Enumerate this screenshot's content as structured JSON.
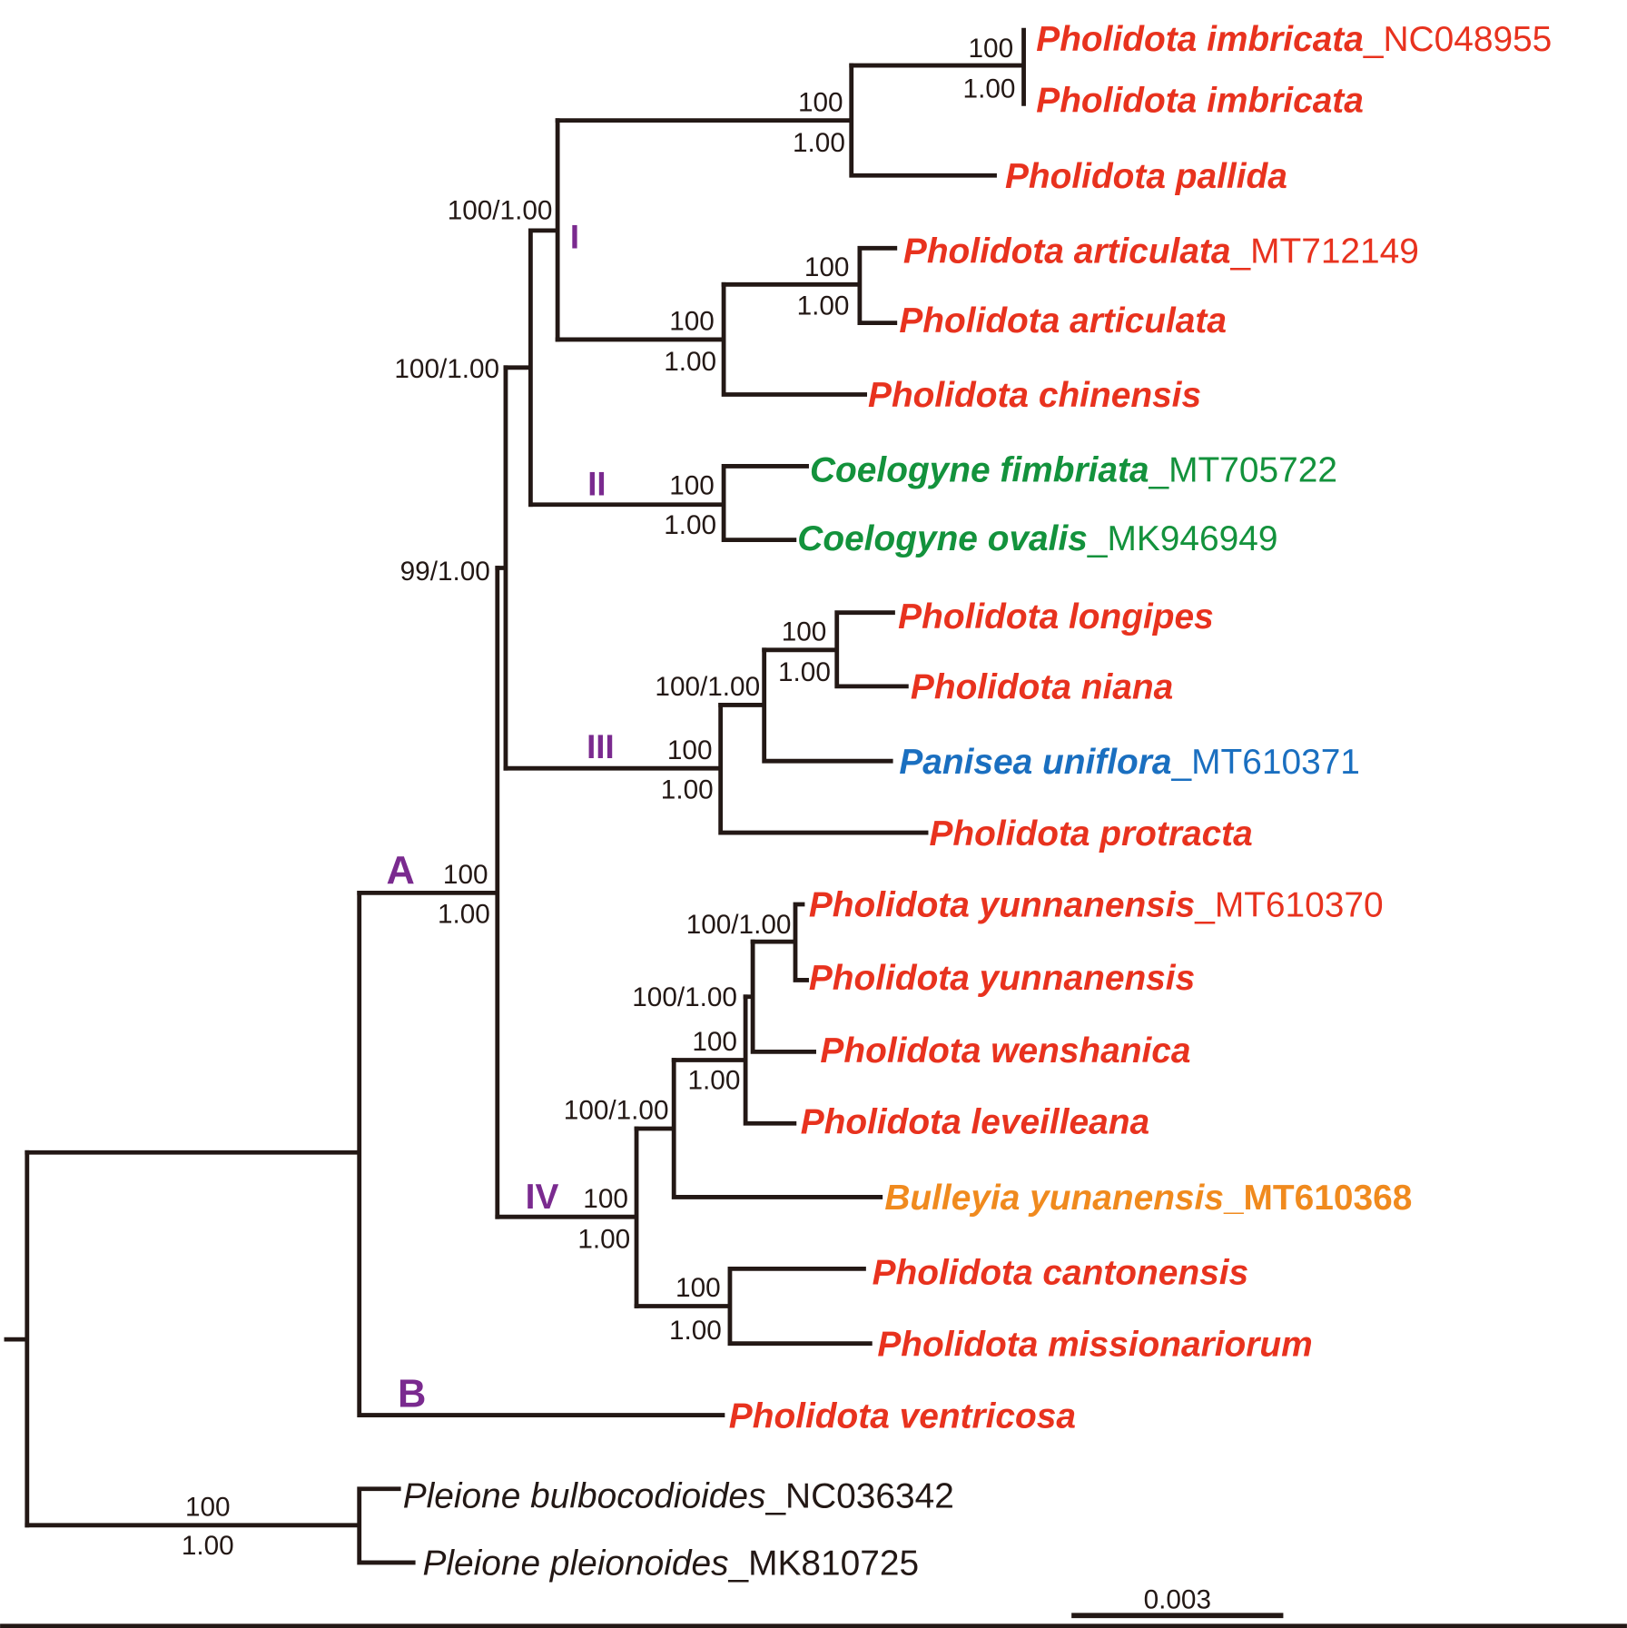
{
  "colors": {
    "pholidota": "#e8321e",
    "coelogyne": "#13923c",
    "panisea": "#1a6fc0",
    "bulleyia": "#f08a1e",
    "clade_label": "#7a2a8f",
    "branch": "#231815"
  },
  "leaves": [
    {
      "species": "Pholidota imbricata",
      "accession": "_NC048955"
    },
    {
      "species": "Pholidota imbricata",
      "accession": ""
    },
    {
      "species": "Pholidota pallida",
      "accession": ""
    },
    {
      "species": "Pholidota articulata",
      "accession": "_MT712149"
    },
    {
      "species": "Pholidota articulata",
      "accession": ""
    },
    {
      "species": "Pholidota chinensis",
      "accession": ""
    },
    {
      "species": "Coelogyne fimbriata",
      "accession": "_MT705722"
    },
    {
      "species": "Coelogyne ovalis",
      "accession": "_MK946949"
    },
    {
      "species": "Pholidota longipes",
      "accession": ""
    },
    {
      "species": "Pholidota niana",
      "accession": ""
    },
    {
      "species": "Panisea uniflora",
      "accession": "_MT610371"
    },
    {
      "species": "Pholidota protracta",
      "accession": ""
    },
    {
      "species": "Pholidota yunnanensis",
      "accession": "_MT610370"
    },
    {
      "species": "Pholidota yunnanensis",
      "accession": ""
    },
    {
      "species": "Pholidota wenshanica",
      "accession": ""
    },
    {
      "species": "Pholidota leveilleana",
      "accession": ""
    },
    {
      "species": "Bulleyia yunanensis",
      "accession": "_MT610368"
    },
    {
      "species": "Pholidota cantonensis",
      "accession": ""
    },
    {
      "species": "Pholidota missionariorum",
      "accession": ""
    },
    {
      "species": "Pholidota ventricosa",
      "accession": ""
    },
    {
      "species": "Pleione bulbocodioides",
      "accession": "_NC036342"
    },
    {
      "species": "Pleione pleionoides",
      "accession": "_MK810725"
    }
  ],
  "support": {
    "imbricata_pair": {
      "bs": "100",
      "pp": "1.00"
    },
    "imbricata_pallida": {
      "bs": "100",
      "pp": "1.00"
    },
    "articulata_pair": {
      "bs": "100",
      "pp": "1.00"
    },
    "articulata_chinensis": {
      "bs": "100",
      "pp": "1.00"
    },
    "clade_I": "100/1.00",
    "coelogyne": {
      "bs": "100",
      "pp": "1.00"
    },
    "clade_I_II": "100/1.00",
    "longipes_niana": {
      "bs": "100",
      "pp": "1.00"
    },
    "with_panisea": "100/1.00",
    "clade_III": {
      "bs": "100",
      "pp": "1.00"
    },
    "clade_I_II_III": "99/1.00",
    "yunnanensis_pair": "100/1.00",
    "with_wenshanica": "100/1.00",
    "with_leveilleana": {
      "bs": "100",
      "pp": "1.00"
    },
    "with_bulleyia": "100/1.00",
    "cantonensis_pair": {
      "bs": "100",
      "pp": "1.00"
    },
    "clade_IV": {
      "bs": "100",
      "pp": "1.00"
    },
    "clade_A": {
      "bs": "100",
      "pp": "1.00"
    },
    "pleione": {
      "bs": "100",
      "pp": "1.00"
    }
  },
  "clade_labels": {
    "I": "I",
    "II": "II",
    "III": "III",
    "IV": "IV",
    "A": "A",
    "B": "B"
  },
  "scale_bar": {
    "label": "0.003",
    "value": 0.003
  }
}
